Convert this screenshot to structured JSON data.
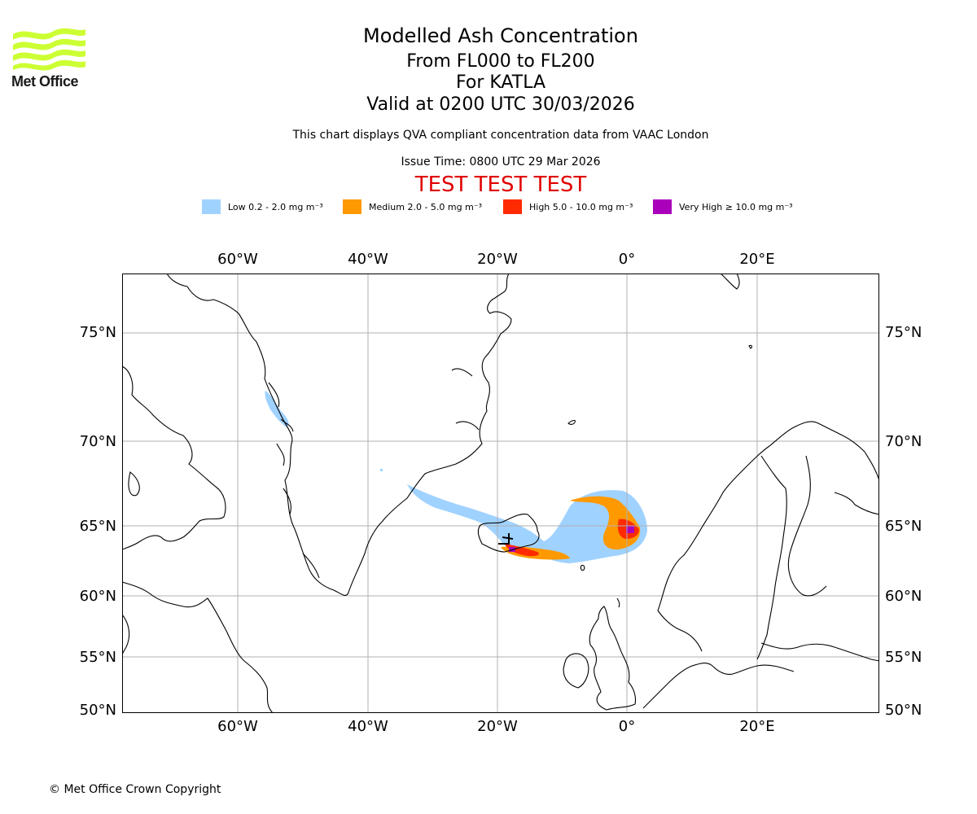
{
  "header": {
    "title": "Modelled Ash Concentration",
    "subtitle_levels": "From FL000 to FL200",
    "subtitle_volcano": "For KATLA",
    "subtitle_valid": "Valid at 0200 UTC 30/03/2026",
    "note": "This chart displays QVA compliant concentration data from VAAC London",
    "issue_time": "Issue Time: 0800 UTC 29 Mar 2026",
    "test_banner": "TEST TEST TEST"
  },
  "logo": {
    "text": "Met Office",
    "color": "#ccff33"
  },
  "legend": [
    {
      "label": "Low 0.2 - 2.0 mg m⁻³",
      "color": "#a0d2ff"
    },
    {
      "label": "Medium 2.0 - 5.0 mg m⁻³",
      "color": "#ff9900"
    },
    {
      "label": "High 5.0 - 10.0 mg m⁻³",
      "color": "#ff2a00"
    },
    {
      "label": "Very High ≥ 10.0 mg m⁻³",
      "color": "#aa00bb"
    }
  ],
  "map": {
    "lon_ticks": [
      "60°W",
      "40°W",
      "20°W",
      "0°",
      "20°E"
    ],
    "lat_ticks": [
      "75°N",
      "70°N",
      "65°N",
      "60°N",
      "55°N",
      "50°N"
    ],
    "grid": true
  },
  "footer": {
    "copyright": "© Met Office Crown Copyright"
  }
}
